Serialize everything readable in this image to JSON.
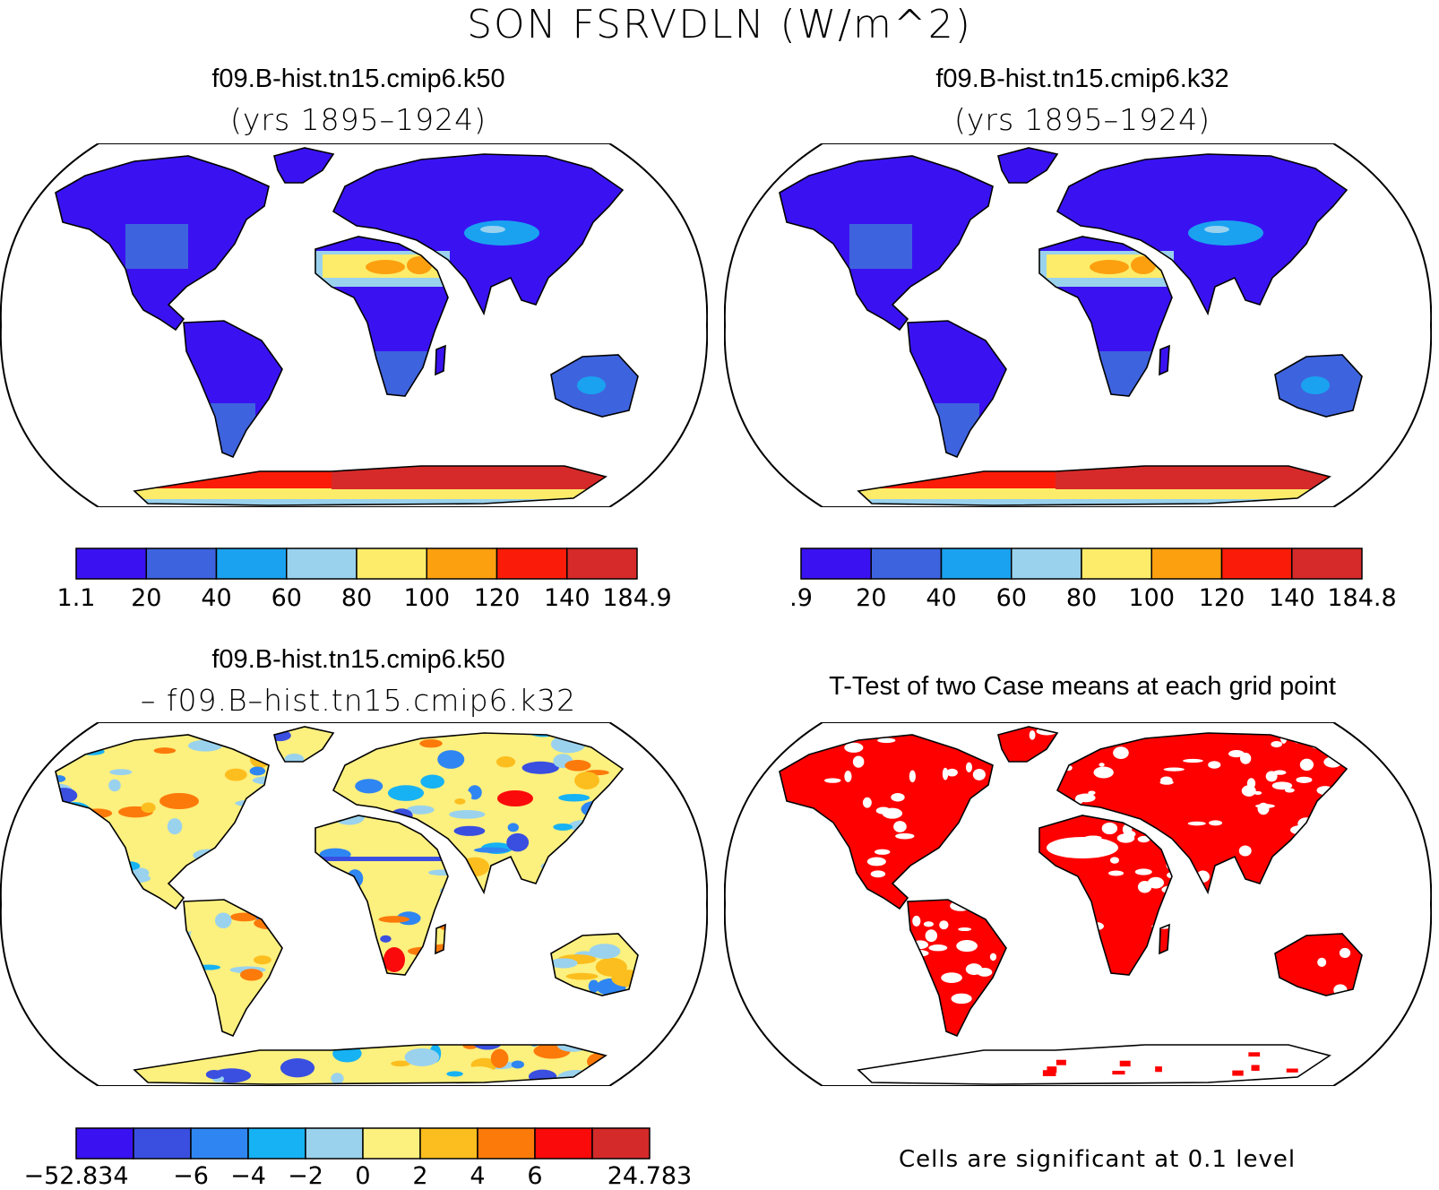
{
  "figure": {
    "title": "SON FSRVDLN (W/m^2)"
  },
  "panels": [
    {
      "id": "case1",
      "title": "f09.B-hist.tn15.cmip6.k50",
      "subtitle": "(yrs 1895–1924)",
      "colorbar": {
        "colors": [
          "#3a12f2",
          "#3e63de",
          "#1aa2f0",
          "#9ad2ee",
          "#fcec6a",
          "#fca010",
          "#fa1c08",
          "#d62a2a"
        ],
        "labels": [
          "1.1",
          "20",
          "40",
          "60",
          "80",
          "100",
          "120",
          "140",
          "184.9"
        ]
      }
    },
    {
      "id": "case2",
      "title": "f09.B-hist.tn15.cmip6.k32",
      "subtitle": "(yrs 1895–1924)",
      "colorbar": {
        "colors": [
          "#3a12f2",
          "#3e63de",
          "#1aa2f0",
          "#9ad2ee",
          "#fcec6a",
          "#fca010",
          "#fa1c08",
          "#d62a2a"
        ],
        "labels": [
          ".9",
          "20",
          "40",
          "60",
          "80",
          "100",
          "120",
          "140",
          "184.8"
        ]
      }
    },
    {
      "id": "difference",
      "title": "f09.B-hist.tn15.cmip6.k50",
      "subtitle": "– f09.B–hist.tn15.cmip6.k32",
      "colorbar": {
        "colors": [
          "#3a12f2",
          "#3a4fe0",
          "#2f86f2",
          "#16b2f4",
          "#9ad2ee",
          "#fcf07e",
          "#fcbe1e",
          "#fc7a0a",
          "#fa0a0a",
          "#d42a2a"
        ],
        "labels": [
          "−52.834",
          "−6",
          "−4",
          "−2",
          "0",
          "2",
          "4",
          "6",
          "24.783"
        ],
        "label_slots": [
          0,
          2,
          3,
          4,
          5,
          6,
          7,
          8,
          10
        ]
      }
    },
    {
      "id": "ttest",
      "title": "T-Test of two Case means at each grid point",
      "note": "Cells are significant at 0.1 level",
      "sig_color": "#ff0000"
    }
  ]
}
